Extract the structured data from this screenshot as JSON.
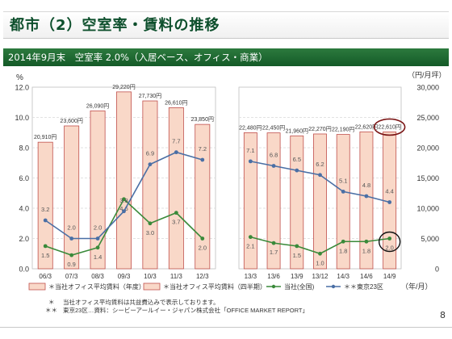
{
  "header": {
    "title": "都市（2）空室率・賃料の推移",
    "subtitle": "2014年9月末　空室率 2.0%（入居ベース、オフィス・商業）"
  },
  "axes": {
    "left_unit": "%",
    "right_unit": "（円/月坪）",
    "x_unit": "（年/月）"
  },
  "legend": {
    "annual_rent": "当社オフィス平均賃料（年度）",
    "half_rent": "当社オフィス平均賃料（四半期）",
    "company": "当社(全国)",
    "tokyo": "東京23区"
  },
  "notes": {
    "note1_mark": "＊",
    "note1": "当社オフィス平均賃料は共益費込みで表示しております。",
    "note2_mark": "＊＊",
    "note2": "東京23区…資料：シービーアールイー・ジャパン株式会社「OFFICE MARKET REPORT」"
  },
  "page_number": "8",
  "colors": {
    "bar_fill": "#f9d8c8",
    "bar_stroke": "#c0504d",
    "company_line": "#3a8a3a",
    "tokyo_line": "#4a6fa5",
    "highlight": "#7a1414"
  },
  "chart_data": [
    {
      "type": "bar+line",
      "categories": [
        "06/3",
        "07/3",
        "08/3",
        "09/3",
        "10/3",
        "11/3",
        "12/3"
      ],
      "ylim_left": [
        0,
        12
      ],
      "left_ticks": [
        "0.0",
        "2.0",
        "4.0",
        "6.0",
        "8.0",
        "10.0",
        "12.0"
      ],
      "ylim_right": [
        0,
        30000
      ],
      "series": [
        {
          "name": "当社オフィス平均賃料（年度）",
          "axis": "right",
          "kind": "bar",
          "values": [
            20910,
            23600,
            26090,
            29220,
            27730,
            26610,
            23850
          ],
          "labels": [
            "20,910円",
            "23,600円",
            "26,090円",
            "29,220円",
            "27,730円",
            "26,610円",
            "23,850円"
          ]
        },
        {
          "name": "当社(全国)",
          "axis": "left",
          "kind": "line",
          "values": [
            1.5,
            0.9,
            1.4,
            4.6,
            3.0,
            3.7,
            2.0
          ],
          "labels": [
            "1.5",
            "0.9",
            "1.4",
            "4.6",
            "3.0",
            "3.7",
            "2.0"
          ]
        },
        {
          "name": "東京23区",
          "axis": "left",
          "kind": "line",
          "values": [
            3.2,
            2.0,
            2.0,
            3.8,
            6.9,
            7.7,
            7.2
          ],
          "labels": [
            "3.2",
            "2.0",
            "2.0",
            "3.8",
            "6.9",
            "7.7",
            "7.2"
          ]
        }
      ]
    },
    {
      "type": "bar+line",
      "categories": [
        "13/3",
        "13/6",
        "13/9",
        "13/12",
        "14/3",
        "14/6",
        "14/9"
      ],
      "ylim_left": [
        0,
        12
      ],
      "ylim_right": [
        0,
        30000
      ],
      "right_ticks": [
        "0",
        "5,000",
        "10,000",
        "15,000",
        "20,000",
        "25,000",
        "30,000"
      ],
      "series": [
        {
          "name": "当社オフィス平均賃料（四半期）",
          "axis": "right",
          "kind": "bar",
          "values": [
            22480,
            22450,
            21960,
            22270,
            22190,
            22620,
            22610
          ],
          "labels": [
            "22,480円",
            "22,450円",
            "21,960円",
            "22,270円",
            "22,190円",
            "22,620円",
            "22,610円"
          ]
        },
        {
          "name": "当社(全国)",
          "axis": "left",
          "kind": "line",
          "values": [
            2.1,
            1.7,
            1.5,
            1.0,
            1.8,
            1.8,
            2.0
          ],
          "labels": [
            "2.1",
            "1.7",
            "1.5",
            "1.0",
            "1.8",
            "1.8",
            "2.0"
          ]
        },
        {
          "name": "東京23区",
          "axis": "left",
          "kind": "line",
          "values": [
            7.1,
            6.8,
            6.5,
            6.2,
            5.1,
            4.8,
            4.4
          ],
          "labels": [
            "7.1",
            "6.8",
            "6.5",
            "6.2",
            "5.1",
            "4.8",
            "4.4"
          ]
        }
      ]
    }
  ]
}
